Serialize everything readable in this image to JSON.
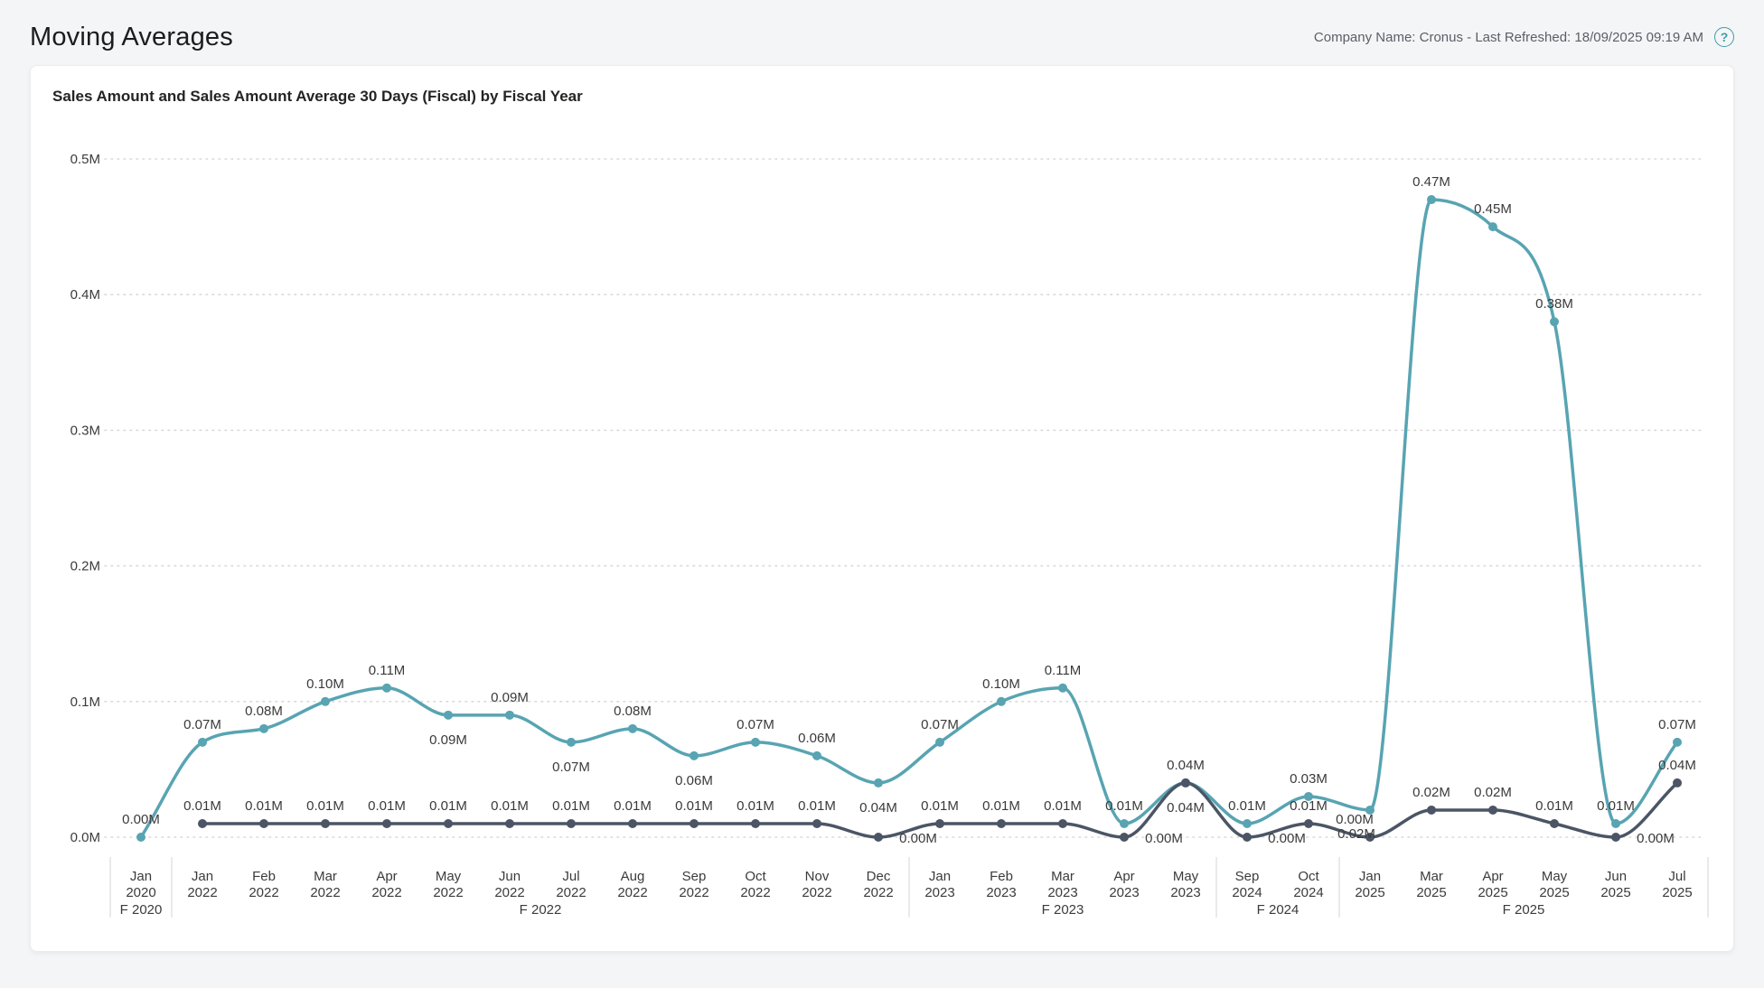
{
  "header": {
    "title": "Moving Averages",
    "info": "Company Name: Cronus - Last Refreshed: 18/09/2025 09:19 AM",
    "help_glyph": "?"
  },
  "chart_data": {
    "type": "line",
    "title": "Sales Amount and Sales Amount Average 30 Days (Fiscal) by Fiscal Year",
    "legend_position": "none",
    "grid": "horizontal-dotted",
    "smoothing": "monotone-curve",
    "y_axis": {
      "unit": "M",
      "min": 0,
      "max": 0.5,
      "ticks": [
        "0.0M",
        "0.1M",
        "0.2M",
        "0.3M",
        "0.4M",
        "0.5M"
      ]
    },
    "categories": [
      {
        "month": "Jan",
        "year": "2020"
      },
      {
        "month": "Jan",
        "year": "2022"
      },
      {
        "month": "Feb",
        "year": "2022"
      },
      {
        "month": "Mar",
        "year": "2022"
      },
      {
        "month": "Apr",
        "year": "2022"
      },
      {
        "month": "May",
        "year": "2022"
      },
      {
        "month": "Jun",
        "year": "2022"
      },
      {
        "month": "Jul",
        "year": "2022"
      },
      {
        "month": "Aug",
        "year": "2022"
      },
      {
        "month": "Sep",
        "year": "2022"
      },
      {
        "month": "Oct",
        "year": "2022"
      },
      {
        "month": "Nov",
        "year": "2022"
      },
      {
        "month": "Dec",
        "year": "2022"
      },
      {
        "month": "Jan",
        "year": "2023"
      },
      {
        "month": "Feb",
        "year": "2023"
      },
      {
        "month": "Mar",
        "year": "2023"
      },
      {
        "month": "Apr",
        "year": "2023"
      },
      {
        "month": "May",
        "year": "2023"
      },
      {
        "month": "Sep",
        "year": "2024"
      },
      {
        "month": "Oct",
        "year": "2024"
      },
      {
        "month": "Jan",
        "year": "2025"
      },
      {
        "month": "Mar",
        "year": "2025"
      },
      {
        "month": "Apr",
        "year": "2025"
      },
      {
        "month": "May",
        "year": "2025"
      },
      {
        "month": "Jun",
        "year": "2025"
      },
      {
        "month": "Jul",
        "year": "2025"
      }
    ],
    "fiscal_groups": [
      {
        "label": "F 2020",
        "start": 0,
        "end": 0
      },
      {
        "label": "F 2022",
        "start": 1,
        "end": 12
      },
      {
        "label": "F 2023",
        "start": 13,
        "end": 17
      },
      {
        "label": "F 2024",
        "start": 18,
        "end": 19
      },
      {
        "label": "F 2025",
        "start": 20,
        "end": 25
      }
    ],
    "series": [
      {
        "name": "Sales Amount",
        "color": "#58a4b2",
        "values": [
          0.0,
          0.07,
          0.08,
          0.1,
          0.11,
          0.09,
          0.09,
          0.07,
          0.08,
          0.06,
          0.07,
          0.06,
          0.04,
          0.07,
          0.1,
          0.11,
          0.01,
          0.04,
          0.01,
          0.03,
          0.02,
          0.47,
          0.45,
          0.38,
          0.01,
          0.07
        ],
        "labels": [
          "0.00M",
          "0.07M",
          "0.08M",
          "0.10M",
          "0.11M",
          "0.09M",
          "0.09M",
          "0.07M",
          "0.08M",
          "0.06M",
          "0.07M",
          "0.06M",
          "0.04M",
          "0.07M",
          "0.10M",
          "0.11M",
          "0.01M",
          "0.04M",
          "0.01M",
          "0.03M",
          "0.02M",
          "0.47M",
          "0.45M",
          "0.38M",
          "0.01M",
          "0.07M"
        ],
        "label_pos": [
          "above",
          "above",
          "above",
          "above",
          "above",
          "below",
          "above",
          "below",
          "above",
          "below",
          "above",
          "above",
          "below",
          "above",
          "above",
          "above",
          "above",
          "below",
          "above",
          "above",
          "below-left",
          "above",
          "above",
          "above",
          "above",
          "above"
        ]
      },
      {
        "name": "Sales Amount Average 30 Days (Fiscal)",
        "color": "#4b5565",
        "values": [
          null,
          0.01,
          0.01,
          0.01,
          0.01,
          0.01,
          0.01,
          0.01,
          0.01,
          0.01,
          0.01,
          0.01,
          0.0,
          0.01,
          0.01,
          0.01,
          0.0,
          0.04,
          0.0,
          0.01,
          0.0,
          0.02,
          0.02,
          0.01,
          0.0,
          0.04
        ],
        "labels": [
          null,
          "0.01M",
          "0.01M",
          "0.01M",
          "0.01M",
          "0.01M",
          "0.01M",
          "0.01M",
          "0.01M",
          "0.01M",
          "0.01M",
          "0.01M",
          "0.00M",
          "0.01M",
          "0.01M",
          "0.01M",
          "0.00M",
          "0.04M",
          "0.00M",
          "0.01M",
          "0.00M",
          "0.02M",
          "0.02M",
          "0.01M",
          "0.00M",
          "0.04M"
        ],
        "label_pos": [
          null,
          "above",
          "above",
          "above",
          "above",
          "above",
          "above",
          "above",
          "above",
          "above",
          "above",
          "above",
          "right",
          "above",
          "above",
          "above",
          "right",
          "above",
          "right",
          "above",
          "above-left",
          "above",
          "above",
          "above",
          "right",
          "above"
        ]
      }
    ]
  },
  "theme": {
    "page_background": "#f4f5f7",
    "card_background": "#ffffff",
    "gridline_color": "#d9d9d9",
    "separator_color": "#d6d6d6",
    "axis_text_color": "#3b3b3b",
    "data_label_color": "#3a3a3a",
    "help_icon_color": "#3d9da5"
  }
}
